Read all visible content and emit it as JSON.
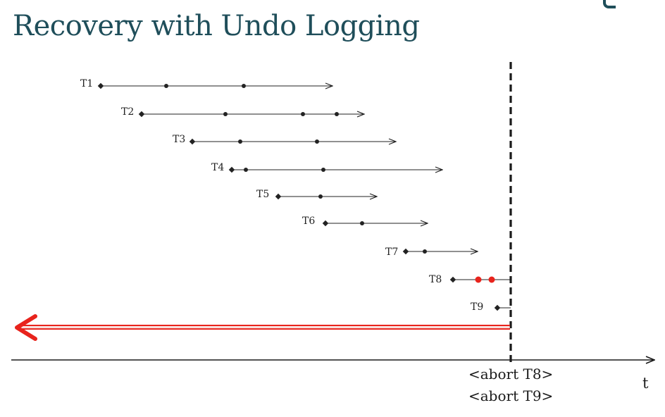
{
  "slide": {
    "title": "Recovery with Undo Logging"
  },
  "diagram": {
    "transactions": [
      {
        "label": "T1",
        "status": "committed",
        "points": 3
      },
      {
        "label": "T2",
        "status": "committed",
        "points": 4
      },
      {
        "label": "T3",
        "status": "committed",
        "points": 3
      },
      {
        "label": "T4",
        "status": "committed",
        "points": 3
      },
      {
        "label": "T5",
        "status": "committed",
        "points": 2
      },
      {
        "label": "T6",
        "status": "committed",
        "points": 2
      },
      {
        "label": "T7",
        "status": "committed",
        "points": 2
      },
      {
        "label": "T8",
        "status": "incomplete",
        "points": 3,
        "highlighted_points": 2
      },
      {
        "label": "T9",
        "status": "incomplete",
        "points": 1
      }
    ],
    "time_axis_label": "t",
    "crash_line": "dashed",
    "recovery_direction": "backward",
    "log_records": [
      "<abort T8>",
      "<abort T9>"
    ],
    "colors": {
      "title": "#1f4e5a",
      "line": "#222222",
      "highlight_point": "#e8231c",
      "recovery_arrow": "#e8231c",
      "crash_line": "#1a1a1a"
    }
  }
}
